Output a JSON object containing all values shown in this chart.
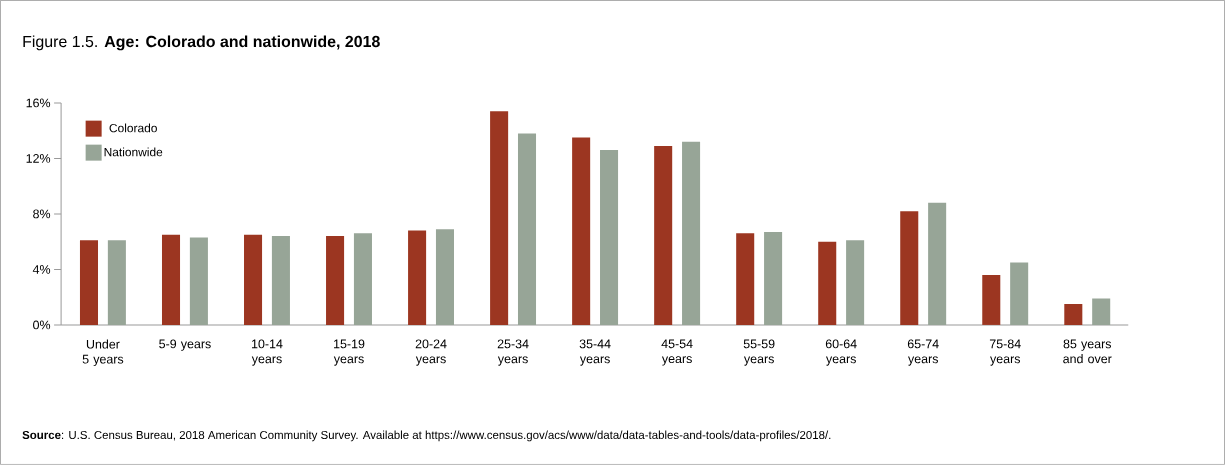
{
  "chart_data": {
    "type": "bar",
    "title": "Figure 1.5. **Age: Colorado and nationwide, 2018**",
    "categories": [
      "Under 5 years",
      "5-9 years",
      "10-14 years",
      "15-19 years",
      "20-24 years",
      "25-34 years",
      "35-44 years",
      "45-54 years",
      "55-59 years",
      "60-64 years",
      "65-74 years",
      "75-84 years",
      "85 years and over"
    ],
    "series": [
      {
        "name": "Colorado",
        "color": "#9c3621",
        "values": [
          6.1,
          6.5,
          6.5,
          6.4,
          6.8,
          15.4,
          13.5,
          12.9,
          6.6,
          6.0,
          8.2,
          3.6,
          1.5
        ]
      },
      {
        "name": "Nationwide",
        "color": "#97a597",
        "values": [
          6.1,
          6.3,
          6.4,
          6.6,
          6.9,
          13.8,
          12.6,
          13.2,
          6.7,
          6.1,
          8.8,
          4.5,
          1.9
        ]
      }
    ],
    "ylim": [
      0,
      16
    ],
    "yticks": [
      {
        "value": 0,
        "label": "0%"
      },
      {
        "value": 4,
        "label": "4%"
      },
      {
        "value": 8,
        "label": "8%"
      },
      {
        "value": 12,
        "label": "12%"
      },
      {
        "value": 16,
        "label": "16%"
      }
    ],
    "legend": "top left",
    "grid": false,
    "annotations": [
      "**Source**: U.S. Census Bureau, 2018 American Community Survey. Available at https://www.census.gov/acs/www/data/data-tables-and-tools/data-profiles/2018/."
    ]
  }
}
